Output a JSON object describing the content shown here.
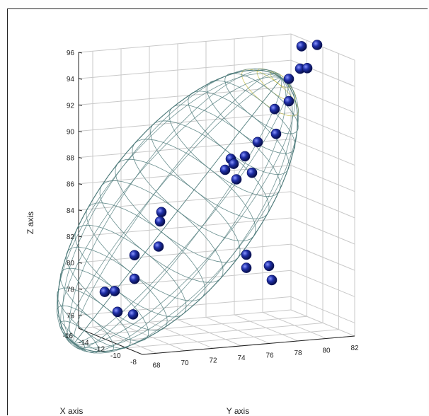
{
  "chart_data": {
    "type": "scatter",
    "xlabel": "X axis",
    "ylabel": "Y axis",
    "zlabel": "Z axis",
    "x_ticks": [
      "-16",
      "-14",
      "-12",
      "-10",
      "-8"
    ],
    "y_ticks": [
      "68",
      "70",
      "72",
      "74",
      "76",
      "78",
      "80",
      "82"
    ],
    "z_ticks": [
      "76",
      "78",
      "80",
      "82",
      "84",
      "86",
      "88",
      "90",
      "92",
      "94",
      "96"
    ],
    "xlim": [
      -16,
      -8
    ],
    "ylim": [
      67,
      82
    ],
    "zlim": [
      75,
      96
    ],
    "grid": true,
    "points": [
      {
        "x": -12,
        "y": 80.5,
        "z": 96.2
      },
      {
        "x": -12,
        "y": 81.6,
        "z": 96.2
      },
      {
        "x": -12,
        "y": 80.4,
        "z": 94.5
      },
      {
        "x": -12,
        "y": 80.9,
        "z": 94.5
      },
      {
        "x": -12,
        "y": 79.6,
        "z": 93.8
      },
      {
        "x": -12,
        "y": 79.6,
        "z": 92.1
      },
      {
        "x": -12,
        "y": 78.6,
        "z": 91.6
      },
      {
        "x": -12,
        "y": 78.7,
        "z": 89.7
      },
      {
        "x": -12,
        "y": 77.4,
        "z": 89.2
      },
      {
        "x": -12,
        "y": 76.5,
        "z": 88.2
      },
      {
        "x": -12,
        "y": 75.5,
        "z": 88.1
      },
      {
        "x": -12,
        "y": 75.7,
        "z": 87.7
      },
      {
        "x": -12,
        "y": 75.1,
        "z": 87.3
      },
      {
        "x": -12,
        "y": 77.0,
        "z": 86.9
      },
      {
        "x": -12,
        "y": 75.9,
        "z": 86.5
      },
      {
        "x": -12,
        "y": 70.6,
        "z": 84.5
      },
      {
        "x": -12,
        "y": 70.5,
        "z": 83.8
      },
      {
        "x": -12,
        "y": 70.4,
        "z": 81.9
      },
      {
        "x": -12,
        "y": 68.7,
        "z": 81.4
      },
      {
        "x": -12,
        "y": 68.7,
        "z": 79.6
      },
      {
        "x": -12,
        "y": 66.6,
        "z": 78.8
      },
      {
        "x": -12,
        "y": 67.3,
        "z": 78.8
      },
      {
        "x": -12,
        "y": 67.5,
        "z": 77.2
      },
      {
        "x": -12,
        "y": 68.6,
        "z": 76.9
      },
      {
        "x": -12,
        "y": 76.6,
        "z": 80.7
      },
      {
        "x": -12,
        "y": 76.6,
        "z": 79.7
      },
      {
        "x": -12,
        "y": 78.2,
        "z": 79.7
      },
      {
        "x": -12,
        "y": 78.4,
        "z": 78.6
      }
    ],
    "overlay": "ellipsoid mesh"
  },
  "colors": {
    "point": "#1f2fa8",
    "point_highlight": "#8a96ff",
    "grid": "#c9c9c9",
    "mesh": "#4d7a7a",
    "mesh_top": "#c9c24e"
  }
}
